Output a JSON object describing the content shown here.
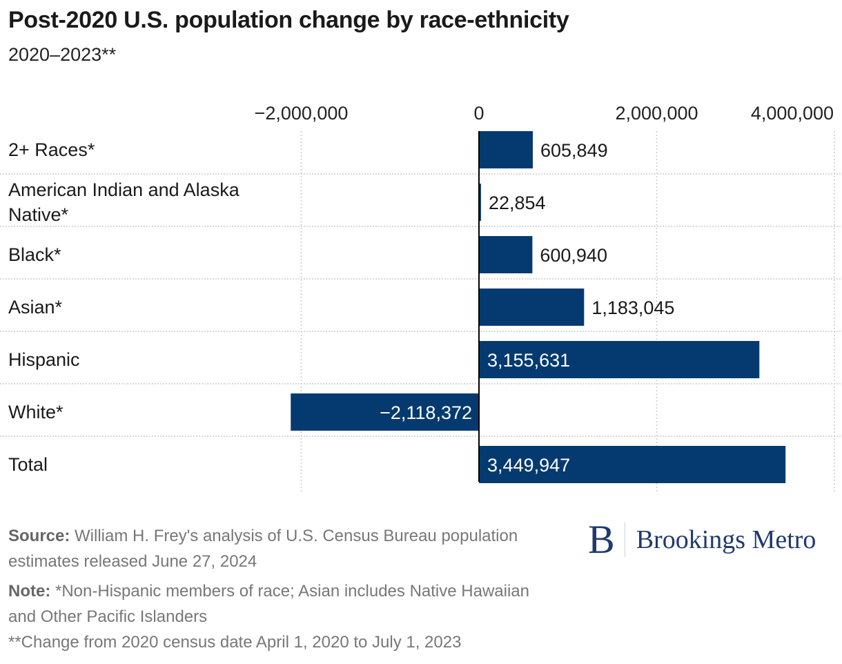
{
  "header": {
    "title": "Post-2020 U.S. population change by race-ethnicity",
    "subtitle": "2020–2023**"
  },
  "colors": {
    "bar": "#053a70",
    "axis": "#000000",
    "grid": "#cccccc"
  },
  "chart_data": {
    "type": "bar",
    "orientation": "horizontal",
    "title": "Post-2020 U.S. population change by race-ethnicity",
    "subtitle": "2020–2023**",
    "categories": [
      "2+ Races*",
      "American Indian and Alaska Native*",
      "Black*",
      "Asian*",
      "Hispanic",
      "White*",
      "Total"
    ],
    "category_lines": [
      [
        "2+ Races*"
      ],
      [
        "American Indian and Alaska",
        "Native*"
      ],
      [
        "Black*"
      ],
      [
        "Asian*"
      ],
      [
        "Hispanic"
      ],
      [
        "White*"
      ],
      [
        "Total"
      ]
    ],
    "values": [
      605849,
      22854,
      600940,
      1183045,
      3155631,
      -2118372,
      3449947
    ],
    "value_labels": [
      "605,849",
      "22,854",
      "600,940",
      "1,183,045",
      "3,155,631",
      "−2,118,372",
      "3,449,947"
    ],
    "xticks": [
      -2000000,
      0,
      2000000,
      4000000
    ],
    "xtick_labels": [
      "−2,000,000",
      "0",
      "2,000,000",
      "4,000,000"
    ],
    "xlim": [
      -2000000,
      4000000
    ],
    "xlabel": "",
    "ylabel": "",
    "grid": true,
    "axis_position": "top"
  },
  "footer": {
    "source_label": "Source:",
    "source_text": "William H. Frey's analysis of U.S. Census Bureau population estimates released June 27, 2024",
    "note_label": "Note:",
    "note_text": "*Non-Hispanic members of race; Asian includes Native Hawaiian and Other Pacific Islanders",
    "note_text_2": "**Change from 2020 census date April 1, 2020 to July 1, 2023"
  },
  "logo": {
    "mark": "B",
    "name": "Brookings Metro"
  }
}
